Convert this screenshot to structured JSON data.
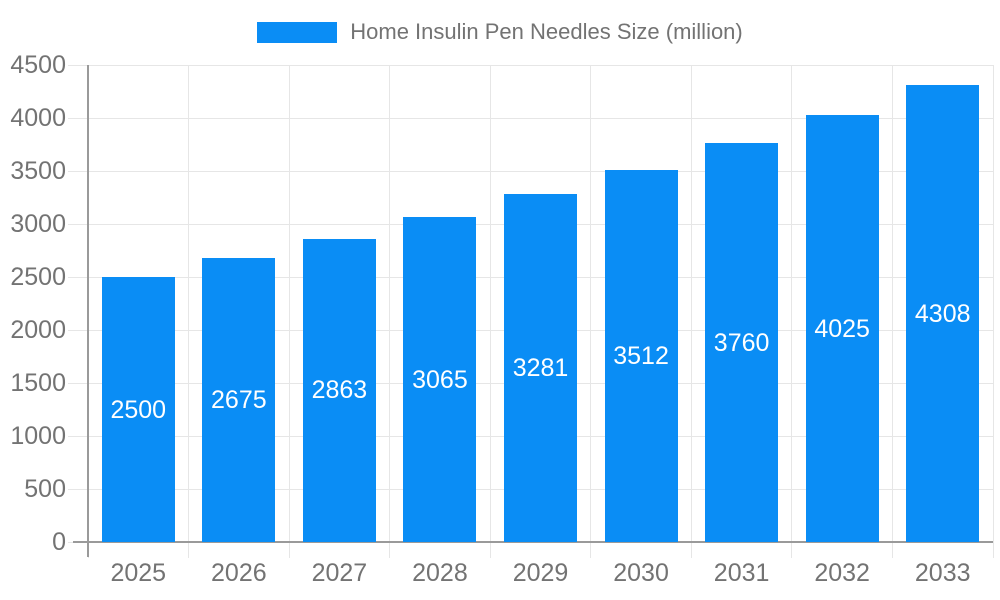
{
  "legend": {
    "label": "Home Insulin Pen Needles Size (million)"
  },
  "chart_data": {
    "type": "bar",
    "title": "Home Insulin Pen Needles Size (million)",
    "series_name": "Home Insulin Pen Needles Size (million)",
    "categories": [
      "2025",
      "2026",
      "2027",
      "2028",
      "2029",
      "2030",
      "2031",
      "2032",
      "2033"
    ],
    "values": [
      2500,
      2675,
      2863,
      3065,
      3281,
      3512,
      3760,
      4025,
      4308
    ],
    "bar_value_labels": [
      "2500",
      "2675",
      "2863",
      "3065",
      "3281",
      "3512",
      "3760",
      "4025",
      "4308"
    ],
    "xlabel": "",
    "ylabel": "",
    "ylim": [
      0,
      4500
    ],
    "ytick_step": 500,
    "yticks": [
      0,
      500,
      1000,
      1500,
      2000,
      2500,
      3000,
      3500,
      4000,
      4500
    ],
    "grid": true,
    "legend_position": "top",
    "colors": {
      "bar": "#0a8df5",
      "grid": "#e6e6e6",
      "axis": "#9a9a9a",
      "tick_label": "#737373",
      "title": "#737373",
      "bar_value_label": "#ffffff",
      "background": "#ffffff"
    }
  }
}
